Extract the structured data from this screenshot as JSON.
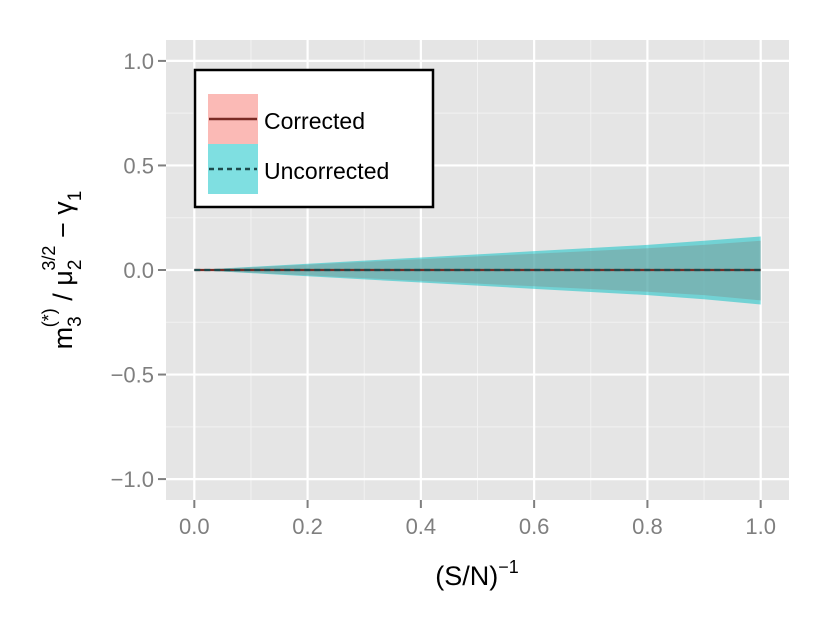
{
  "chart_data": {
    "type": "line",
    "xlabel": {
      "base": "(S/N)",
      "sup": "−1"
    },
    "ylabel": {
      "m": "m",
      "m_sub": "3",
      "m_sup": "(*)",
      "slash": " / ",
      "mu": "μ",
      "mu_sub": "2",
      "mu_sup": "3/2",
      "minus": " − ",
      "gamma": "γ",
      "gamma_sub": "1"
    },
    "xlim": [
      -0.05,
      1.05
    ],
    "ylim": [
      -1.1,
      1.1
    ],
    "x_ticks": [
      0.0,
      0.2,
      0.4,
      0.6,
      0.8,
      1.0
    ],
    "x_tick_labels": [
      "0.0",
      "0.2",
      "0.4",
      "0.6",
      "0.8",
      "1.0"
    ],
    "y_ticks": [
      -1.0,
      -0.5,
      0.0,
      0.5,
      1.0
    ],
    "y_tick_labels": [
      "−1.0",
      "−0.5",
      "0.0",
      "0.5",
      "1.0"
    ],
    "grid": true,
    "legend_position": "top-left",
    "x": [
      0.0,
      0.1,
      0.2,
      0.3,
      0.4,
      0.5,
      0.6,
      0.7,
      0.8,
      0.9,
      1.0
    ],
    "series": [
      {
        "name": "Corrected",
        "line_style": "solid",
        "fill_color": "#F8766D",
        "line_color": "#7a2a24",
        "values": [
          0.0,
          0.0,
          0.0,
          0.0,
          0.0,
          0.0,
          0.0,
          0.0,
          0.0,
          0.0,
          0.0
        ],
        "ribbon_lower": [
          0.0,
          -0.013,
          -0.026,
          -0.039,
          -0.052,
          -0.065,
          -0.078,
          -0.091,
          -0.104,
          -0.12,
          -0.145
        ],
        "ribbon_upper": [
          0.0,
          0.013,
          0.026,
          0.039,
          0.052,
          0.065,
          0.078,
          0.091,
          0.104,
          0.12,
          0.14
        ]
      },
      {
        "name": "Uncorrected",
        "line_style": "dashed",
        "fill_color": "#00BFC4",
        "line_color": "#1d4a4c",
        "values": [
          0.0,
          0.0,
          0.0,
          0.0,
          0.0,
          0.0,
          0.0,
          0.0,
          0.0,
          0.0,
          0.0
        ],
        "ribbon_lower": [
          0.0,
          -0.015,
          -0.03,
          -0.045,
          -0.06,
          -0.075,
          -0.09,
          -0.105,
          -0.12,
          -0.14,
          -0.165
        ],
        "ribbon_upper": [
          0.0,
          0.015,
          0.03,
          0.045,
          0.06,
          0.075,
          0.09,
          0.105,
          0.12,
          0.14,
          0.16
        ]
      }
    ]
  }
}
